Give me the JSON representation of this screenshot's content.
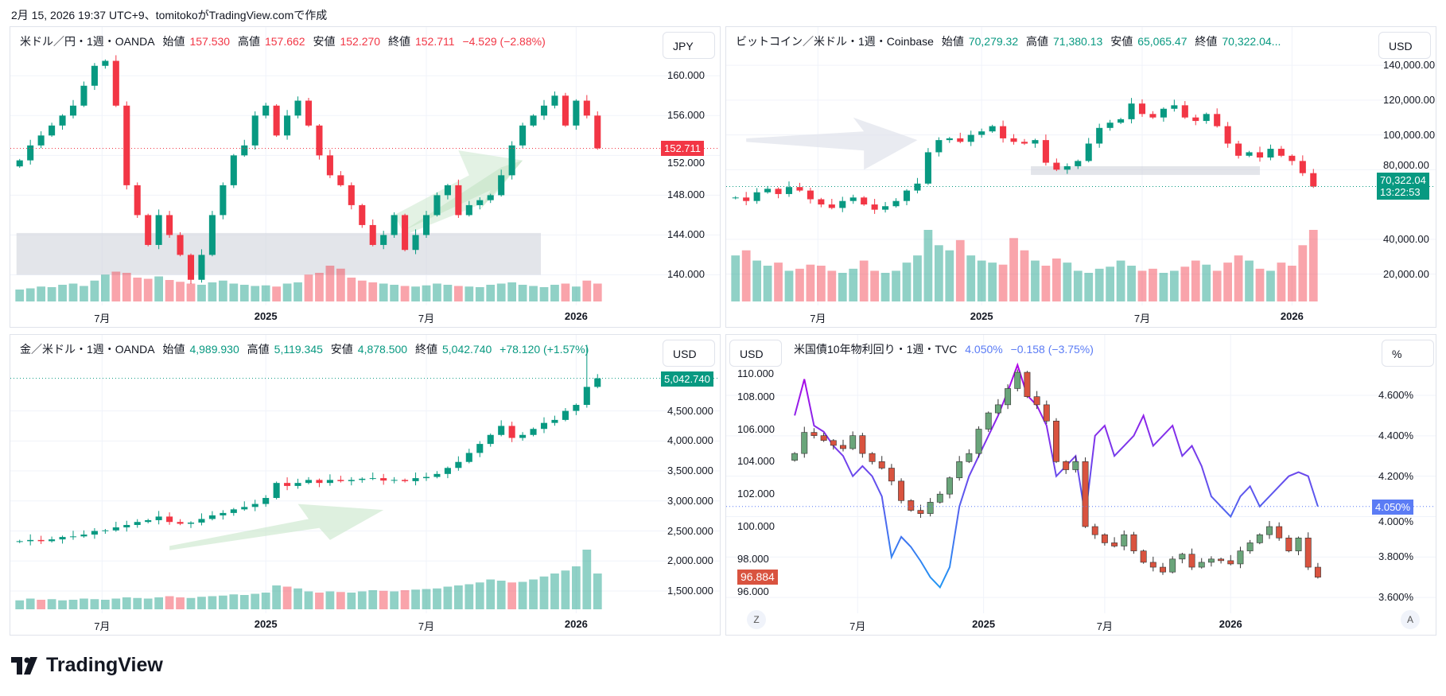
{
  "header": {
    "stamp": "2月 15, 2026 19:37 UTC+9、tomitokoがTradingView.comで作成"
  },
  "footer": {
    "brand": "TradingView"
  },
  "colors": {
    "up": "#089981",
    "down": "#f23645",
    "yield_line": "#5b7cf5",
    "dxy_up": "#6aa57a",
    "dxy_down": "#d9533f"
  },
  "chart_data": [
    {
      "type": "candlestick",
      "symbol": "米ドル／円・1週・OANDA",
      "legend": {
        "o_label": "始値",
        "o": "157.530",
        "h_label": "高値",
        "h": "157.662",
        "l_label": "安値",
        "l": "152.270",
        "c_label": "終値",
        "c": "152.711",
        "change": "−4.529 (−2.88%)"
      },
      "currency": "JPY",
      "last_price": "152.711",
      "last_value": 152.711,
      "ylim": [
        137.8,
        161.3
      ],
      "y_ticks": [
        {
          "v": 160,
          "label": "160.000"
        },
        {
          "v": 156,
          "label": "156.000"
        },
        {
          "v": 152,
          "label": "152.000"
        },
        {
          "v": 148,
          "label": "148.000"
        },
        {
          "v": 144,
          "label": "144.000"
        },
        {
          "v": 140,
          "label": "140.000"
        }
      ],
      "x_ticks": [
        {
          "i": 7.7,
          "label": "7月",
          "bold": false
        },
        {
          "i": 23,
          "label": "2025",
          "bold": true
        },
        {
          "i": 38,
          "label": "7月",
          "bold": false
        },
        {
          "i": 52,
          "label": "2026",
          "bold": true
        }
      ],
      "closes": [
        151.5,
        153,
        154,
        155,
        156,
        157,
        159,
        161,
        161.5,
        157,
        149,
        146,
        143,
        146,
        144,
        142,
        139.5,
        142,
        146,
        149,
        152,
        153,
        156,
        157,
        154,
        156,
        157.5,
        155,
        152,
        150,
        149,
        147,
        145,
        143,
        144,
        146,
        142.5,
        144,
        146,
        148,
        149,
        146,
        147,
        147.5,
        148,
        150,
        153,
        155,
        156,
        157,
        158,
        155,
        157.5,
        156,
        152.711
      ],
      "volumes": [
        20,
        22,
        25,
        24,
        28,
        30,
        26,
        35,
        45,
        50,
        48,
        40,
        38,
        42,
        36,
        33,
        30,
        28,
        32,
        35,
        30,
        28,
        26,
        27,
        25,
        30,
        32,
        45,
        48,
        60,
        55,
        40,
        35,
        32,
        30,
        28,
        26,
        25,
        27,
        30,
        28,
        26,
        25,
        24,
        28,
        30,
        32,
        28,
        26,
        24,
        28,
        30,
        25,
        35,
        30
      ]
    },
    {
      "type": "candlestick",
      "symbol": "ビットコイン／米ドル・1週・Coinbase",
      "legend": {
        "o_label": "始値",
        "o": "70,279.32",
        "h_label": "高値",
        "h": "71,380.13",
        "l_label": "安値",
        "l": "65,065.47",
        "c_label": "終値",
        "c": "70,322.04...",
        "change": ""
      },
      "currency": "USD",
      "last_price": "70,322.04",
      "countdown": "13:22:53",
      "last_value": 70322.04,
      "ylim": [
        7000,
        141400
      ],
      "y_ticks": [
        {
          "v": 140000,
          "label": "140,000.00"
        },
        {
          "v": 120000,
          "label": "120,000.00"
        },
        {
          "v": 100000,
          "label": "100,000.00"
        },
        {
          "v": 80000,
          "label": "80,000.00"
        },
        {
          "v": 40000,
          "label": "40,000.00"
        },
        {
          "v": 20000,
          "label": "20,000.00"
        }
      ],
      "x_ticks": [
        {
          "i": 7.7,
          "label": "7月",
          "bold": false
        },
        {
          "i": 23,
          "label": "2025",
          "bold": true
        },
        {
          "i": 38,
          "label": "7月",
          "bold": false
        },
        {
          "i": 52,
          "label": "2026",
          "bold": true
        }
      ],
      "closes": [
        64000,
        62000,
        67000,
        69000,
        66000,
        70000,
        68000,
        63000,
        60000,
        58000,
        62000,
        64000,
        60000,
        57000,
        59000,
        62000,
        68000,
        72000,
        90000,
        97000,
        98000,
        96000,
        100000,
        102000,
        105000,
        98000,
        96000,
        95000,
        97000,
        84000,
        80000,
        82000,
        85000,
        95000,
        104000,
        107000,
        109000,
        118000,
        112000,
        110000,
        115000,
        117000,
        110000,
        108000,
        112000,
        105000,
        95000,
        88000,
        90000,
        87000,
        92000,
        88000,
        85000,
        78000,
        70322.04
      ],
      "volumes": [
        45,
        50,
        40,
        35,
        38,
        30,
        32,
        36,
        35,
        30,
        28,
        32,
        40,
        30,
        28,
        30,
        38,
        45,
        70,
        55,
        50,
        60,
        45,
        40,
        38,
        36,
        62,
        50,
        40,
        35,
        42,
        38,
        30,
        28,
        32,
        34,
        40,
        35,
        30,
        32,
        28,
        30,
        34,
        40,
        36,
        30,
        38,
        45,
        40,
        32,
        30,
        38,
        35,
        55,
        70
      ]
    },
    {
      "type": "candlestick",
      "symbol": "金／米ドル・1週・OANDA",
      "legend": {
        "o_label": "始値",
        "o": "4,989.930",
        "h_label": "高値",
        "h": "5,119.345",
        "l_label": "安値",
        "l": "4,878.500",
        "c_label": "終値",
        "c": "5,042.740",
        "change": "+78.120 (+1.57%)"
      },
      "currency": "USD",
      "last_price": "5,042.740",
      "last_value": 5042.74,
      "ylim": [
        1275,
        5170
      ],
      "y_ticks": [
        {
          "v": 4500,
          "label": "4,500.000"
        },
        {
          "v": 4000,
          "label": "4,000.000"
        },
        {
          "v": 3500,
          "label": "3,500.000"
        },
        {
          "v": 3000,
          "label": "3,000.000"
        },
        {
          "v": 2500,
          "label": "2,500.000"
        },
        {
          "v": 2000,
          "label": "2,000.000"
        },
        {
          "v": 1500,
          "label": "1,500.000"
        }
      ],
      "x_ticks": [
        {
          "i": 7.7,
          "label": "7月",
          "bold": false
        },
        {
          "i": 23,
          "label": "2025",
          "bold": true
        },
        {
          "i": 38,
          "label": "7月",
          "bold": false
        },
        {
          "i": 52,
          "label": "2026",
          "bold": true
        }
      ],
      "closes": [
        2330,
        2350,
        2330,
        2360,
        2400,
        2410,
        2440,
        2500,
        2510,
        2560,
        2600,
        2650,
        2680,
        2740,
        2650,
        2620,
        2640,
        2700,
        2760,
        2800,
        2860,
        2900,
        2950,
        3050,
        3300,
        3250,
        3300,
        3350,
        3300,
        3350,
        3330,
        3350,
        3370,
        3380,
        3340,
        3350,
        3330,
        3380,
        3400,
        3450,
        3550,
        3650,
        3800,
        3950,
        4100,
        4250,
        4050,
        4100,
        4200,
        4300,
        4350,
        4500,
        4600,
        4900,
        5042.74
      ],
      "volumes": [
        15,
        18,
        16,
        17,
        15,
        16,
        18,
        17,
        16,
        18,
        20,
        19,
        18,
        20,
        22,
        20,
        19,
        21,
        22,
        23,
        25,
        24,
        26,
        28,
        40,
        38,
        35,
        30,
        28,
        30,
        29,
        28,
        30,
        32,
        31,
        30,
        32,
        33,
        34,
        35,
        38,
        40,
        42,
        45,
        50,
        48,
        45,
        46,
        50,
        55,
        60,
        65,
        72,
        100,
        60
      ]
    },
    {
      "type": "candlestick+line",
      "symbol": "米国債10年物利回り・1週・TVC",
      "legend": {
        "value": "4.050%",
        "change": "−0.158 (−3.75%)"
      },
      "currency_left": "USD",
      "currency_right": "%",
      "last_price": "4.050%",
      "left_last_price": "96.884",
      "last_value": 4.05,
      "left_last_value": 96.884,
      "ylim_left": [
        95.2,
        109.6
      ],
      "ylim": [
        3.565,
        4.722
      ],
      "y_ticks_left": [
        {
          "v": 110,
          "label": "110.000"
        },
        {
          "v": 108,
          "label": "108.000"
        },
        {
          "v": 106,
          "label": "106.000"
        },
        {
          "v": 104,
          "label": "104.000"
        },
        {
          "v": 102,
          "label": "102.000"
        },
        {
          "v": 100,
          "label": "100.000"
        },
        {
          "v": 98,
          "label": "98.000"
        },
        {
          "v": 96,
          "label": "96.000"
        }
      ],
      "y_ticks": [
        {
          "v": 4.6,
          "label": "4.600%"
        },
        {
          "v": 4.4,
          "label": "4.400%"
        },
        {
          "v": 4.2,
          "label": "4.200%"
        },
        {
          "v": 4.0,
          "label": "4.000%"
        },
        {
          "v": 3.8,
          "label": "3.800%"
        },
        {
          "v": 3.6,
          "label": "3.600%"
        }
      ],
      "x_ticks": [
        {
          "i": 6.5,
          "label": "7月",
          "bold": false
        },
        {
          "i": 19.5,
          "label": "2025",
          "bold": true
        },
        {
          "i": 32,
          "label": "7月",
          "bold": false
        },
        {
          "i": 45,
          "label": "2026",
          "bold": true
        }
      ],
      "closes": [
        104.5,
        105.8,
        105.6,
        105.3,
        105,
        104.8,
        105.6,
        104.5,
        104,
        103.6,
        102.8,
        101.6,
        101,
        100.8,
        101.5,
        102,
        103,
        104,
        104.5,
        106,
        107,
        107.5,
        108.5,
        109.5,
        108,
        107.5,
        106.5,
        104,
        103.5,
        104,
        100,
        99.5,
        99,
        98.8,
        99.5,
        98.5,
        97.8,
        97.5,
        97.2,
        98,
        98.3,
        97.5,
        97.8,
        98,
        97.9,
        97.7,
        98.5,
        99,
        99.5,
        100,
        99.3,
        98.5,
        99.3,
        97.5,
        96.884
      ],
      "yield_line": [
        4.5,
        4.68,
        4.45,
        4.42,
        4.35,
        4.3,
        4.2,
        4.25,
        4.2,
        4.1,
        3.8,
        3.9,
        3.85,
        3.78,
        3.7,
        3.65,
        3.75,
        4.05,
        4.2,
        4.3,
        4.4,
        4.5,
        4.62,
        4.75,
        4.6,
        4.55,
        4.45,
        4.2,
        4.25,
        4.3,
        4.0,
        4.4,
        4.45,
        4.3,
        4.35,
        4.4,
        4.5,
        4.35,
        4.4,
        4.45,
        4.3,
        4.35,
        4.25,
        4.1,
        4.05,
        4.0,
        4.1,
        4.15,
        4.05,
        4.1,
        4.15,
        4.2,
        4.22,
        4.2,
        4.05
      ],
      "buttons": {
        "left": "Z",
        "right": "A"
      }
    }
  ]
}
